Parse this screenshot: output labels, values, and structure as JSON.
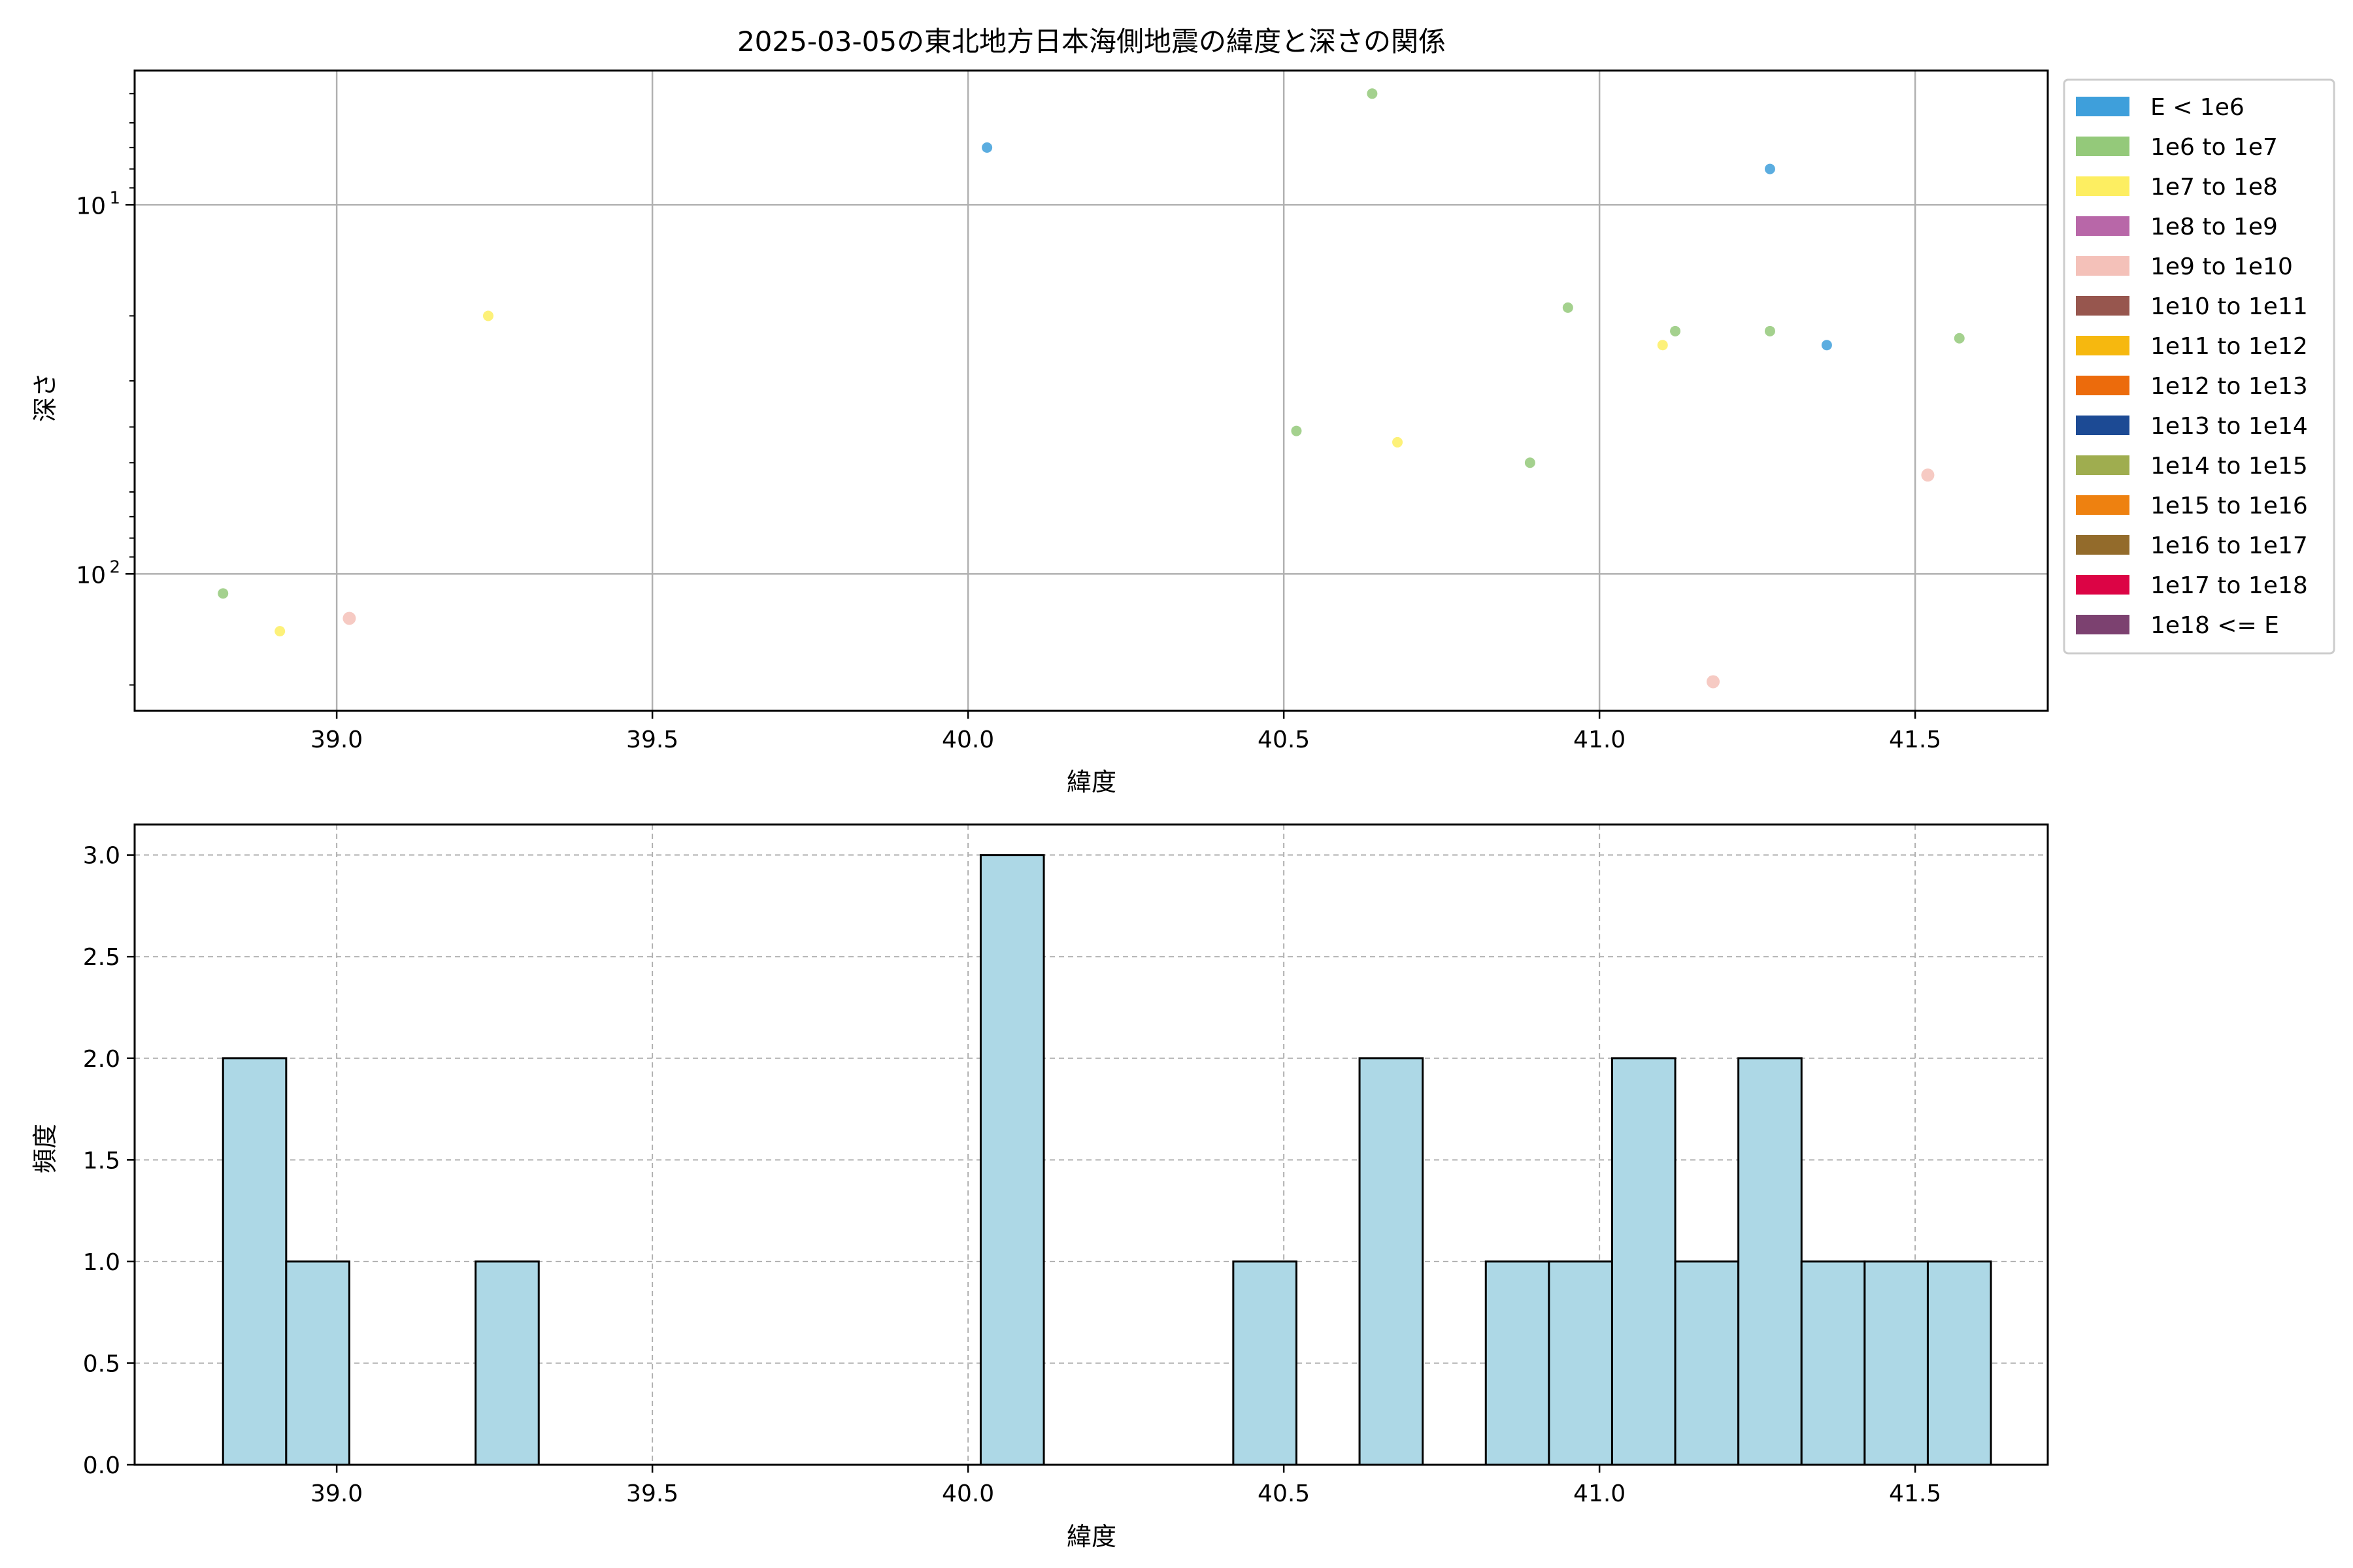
{
  "chart_data": [
    {
      "type": "scatter",
      "title": "2025-03-05の東北地方日本海側地震の緯度と深さの関係",
      "xlabel": "緯度",
      "ylabel": "深さ",
      "xlim": [
        38.68,
        41.71
      ],
      "ylim": [
        4.33,
        235
      ],
      "y_scale": "log",
      "y_inverted": true,
      "grid": true,
      "x_ticks": [
        "39.0",
        "39.5",
        "40.0",
        "40.5",
        "41.0",
        "41.5"
      ],
      "y_tick_labels": {
        "10": "10",
        "100": "10"
      },
      "y_tick_exponents": {
        "10": "1",
        "100": "2"
      },
      "legend": {
        "placement": "outside-right",
        "entries": [
          {
            "label": "E < 1e6",
            "color": "#3e9fdb"
          },
          {
            "label": "1e6 to 1e7",
            "color": "#94c97a"
          },
          {
            "label": "1e7 to 1e8",
            "color": "#fdee61"
          },
          {
            "label": "1e8 to 1e9",
            "color": "#b867a8"
          },
          {
            "label": "1e9 to 1e10",
            "color": "#f4c1b9"
          },
          {
            "label": "1e10 to 1e11",
            "color": "#97564e"
          },
          {
            "label": "1e11 to 1e12",
            "color": "#f6b80f"
          },
          {
            "label": "1e12 to 1e13",
            "color": "#ec6b0c"
          },
          {
            "label": "1e13 to 1e14",
            "color": "#1c4a94"
          },
          {
            "label": "1e14 to 1e15",
            "color": "#9fad4f"
          },
          {
            "label": "1e15 to 1e16",
            "color": "#ee8110"
          },
          {
            "label": "1e16 to 1e17",
            "color": "#936b2b"
          },
          {
            "label": "1e17 to 1e18",
            "color": "#dc0445"
          },
          {
            "label": "1e18 <= E",
            "color": "#7c4170"
          }
        ]
      },
      "points": [
        {
          "x": 38.82,
          "y": 113,
          "cat": 1
        },
        {
          "x": 38.91,
          "y": 143,
          "cat": 2
        },
        {
          "x": 39.02,
          "y": 132,
          "cat": 4
        },
        {
          "x": 39.24,
          "y": 20,
          "cat": 2
        },
        {
          "x": 40.03,
          "y": 7,
          "cat": 0
        },
        {
          "x": 40.52,
          "y": 41,
          "cat": 1
        },
        {
          "x": 40.64,
          "y": 5,
          "cat": 1
        },
        {
          "x": 40.68,
          "y": 44,
          "cat": 2
        },
        {
          "x": 40.89,
          "y": 50,
          "cat": 1
        },
        {
          "x": 40.95,
          "y": 19,
          "cat": 1
        },
        {
          "x": 41.1,
          "y": 24,
          "cat": 2
        },
        {
          "x": 41.12,
          "y": 22,
          "cat": 1
        },
        {
          "x": 41.18,
          "y": 196,
          "cat": 4
        },
        {
          "x": 41.27,
          "y": 8,
          "cat": 0
        },
        {
          "x": 41.27,
          "y": 22,
          "cat": 1
        },
        {
          "x": 41.36,
          "y": 24,
          "cat": 0
        },
        {
          "x": 41.52,
          "y": 54,
          "cat": 4
        },
        {
          "x": 41.57,
          "y": 23,
          "cat": 1
        }
      ]
    },
    {
      "type": "bar",
      "subtype": "histogram",
      "xlabel": "緯度",
      "ylabel": "頻度",
      "xlim": [
        38.68,
        41.71
      ],
      "ylim": [
        0,
        3.15
      ],
      "grid": true,
      "x_ticks": [
        "39.0",
        "39.5",
        "40.0",
        "40.5",
        "41.0",
        "41.5"
      ],
      "y_ticks": [
        "0.0",
        "0.5",
        "1.0",
        "1.5",
        "2.0",
        "2.5",
        "3.0"
      ],
      "bar_color": "#add8e6",
      "bins": [
        {
          "start": 38.82,
          "end": 38.92,
          "count": 2
        },
        {
          "start": 38.92,
          "end": 39.02,
          "count": 1
        },
        {
          "start": 39.22,
          "end": 39.32,
          "count": 1
        },
        {
          "start": 40.02,
          "end": 40.12,
          "count": 3
        },
        {
          "start": 40.42,
          "end": 40.52,
          "count": 1
        },
        {
          "start": 40.62,
          "end": 40.72,
          "count": 2
        },
        {
          "start": 40.82,
          "end": 40.92,
          "count": 1
        },
        {
          "start": 40.92,
          "end": 41.02,
          "count": 1
        },
        {
          "start": 41.02,
          "end": 41.12,
          "count": 2
        },
        {
          "start": 41.12,
          "end": 41.22,
          "count": 1
        },
        {
          "start": 41.22,
          "end": 41.32,
          "count": 2
        },
        {
          "start": 41.32,
          "end": 41.42,
          "count": 1
        },
        {
          "start": 41.42,
          "end": 41.52,
          "count": 1
        },
        {
          "start": 41.52,
          "end": 41.62,
          "count": 1
        }
      ]
    }
  ]
}
